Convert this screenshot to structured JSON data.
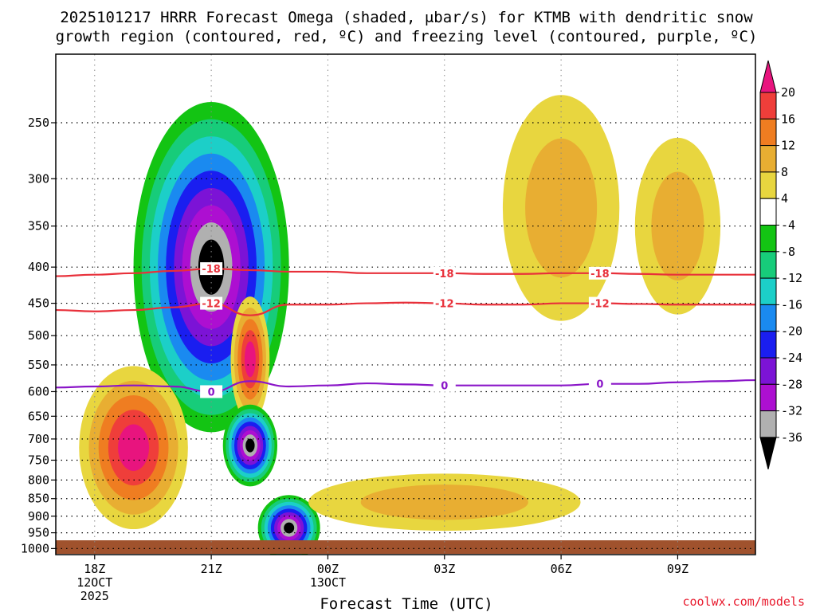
{
  "chart_data": {
    "type": "heatmap",
    "title_line1": "2025101217 HRRR Forecast Omega (shaded, μbar/s) for KTMB with dendritic snow",
    "title_line2": "growth region (contoured, red, ºC) and freezing level (contoured, purple, ºC)",
    "xlabel": "Forecast Time (UTC)",
    "credit": "coolwx.com/models",
    "x_ticks": [
      {
        "hour": 1,
        "label": "18Z",
        "sub1": "12OCT",
        "sub2": "2025"
      },
      {
        "hour": 4,
        "label": "21Z",
        "sub1": "",
        "sub2": ""
      },
      {
        "hour": 7,
        "label": "00Z",
        "sub1": "13OCT",
        "sub2": ""
      },
      {
        "hour": 10,
        "label": "03Z",
        "sub1": "",
        "sub2": ""
      },
      {
        "hour": 13,
        "label": "06Z",
        "sub1": "",
        "sub2": ""
      },
      {
        "hour": 16,
        "label": "09Z",
        "sub1": "",
        "sub2": ""
      }
    ],
    "x_range_hours": [
      0,
      18
    ],
    "y_ticks_hpa": [
      250,
      300,
      350,
      400,
      450,
      500,
      550,
      600,
      650,
      700,
      750,
      800,
      850,
      900,
      950,
      1000
    ],
    "y_range_hpa": [
      200,
      1020
    ],
    "colorbar": {
      "ticks": [
        20,
        16,
        12,
        8,
        4,
        -4,
        -8,
        -12,
        -16,
        -20,
        -24,
        -28,
        -32,
        -36
      ],
      "colors": [
        "#e8147e",
        "#ef3e3a",
        "#ef7d21",
        "#e8ae32",
        "#e8d63f",
        "#ffffff",
        "#13c413",
        "#17cc7a",
        "#1ccfc8",
        "#1a8af0",
        "#1a1ef0",
        "#7c13d6",
        "#ad0fd1",
        "#b0b0b0",
        "#000000"
      ]
    },
    "omega_features": [
      {
        "name": "main-ascent-core",
        "cx": 4.0,
        "cy": 400,
        "rx": 2.0,
        "ry": 210,
        "levels": [
          -4,
          -8,
          -12,
          -16,
          -20,
          -24,
          -28,
          -32,
          -36
        ]
      },
      {
        "name": "low-level-subsidence",
        "cx": 2.0,
        "cy": 720,
        "rx": 1.4,
        "ry": 190,
        "levels": [
          4,
          8,
          12,
          16,
          20
        ]
      },
      {
        "name": "mid-level-subsidence",
        "cx": 5.0,
        "cy": 540,
        "rx": 0.5,
        "ry": 110,
        "levels": [
          4,
          8,
          12,
          16,
          20
        ]
      },
      {
        "name": "low-ascent-cell-1",
        "cx": 5.0,
        "cy": 715,
        "rx": 0.7,
        "ry": 95,
        "levels": [
          -4,
          -8,
          -12,
          -16,
          -20,
          -24,
          -28,
          -32,
          -36
        ]
      },
      {
        "name": "low-ascent-cell-2",
        "cx": 6.0,
        "cy": 935,
        "rx": 0.8,
        "ry": 100,
        "levels": [
          -4,
          -8,
          -12,
          -16,
          -20,
          -24,
          -28,
          -32,
          -36
        ]
      },
      {
        "name": "upper-subsidence-06z",
        "cx": 13.0,
        "cy": 330,
        "rx": 1.5,
        "ry": 120,
        "levels": [
          4,
          8
        ]
      },
      {
        "name": "upper-subsidence-09z",
        "cx": 16.0,
        "cy": 350,
        "rx": 1.1,
        "ry": 100,
        "levels": [
          4,
          8
        ]
      },
      {
        "name": "low-subsidence-band",
        "cx": 10.0,
        "cy": 860,
        "rx": 3.5,
        "ry": 80,
        "levels": [
          4,
          8
        ]
      }
    ],
    "contours": [
      {
        "name": "dendritic-top",
        "label": "-18",
        "color": "#e8303a",
        "hpa": [
          412,
          410,
          408,
          405,
          402,
          404,
          406,
          406,
          408,
          408,
          408,
          409,
          409,
          408,
          408,
          409,
          410,
          410,
          410
        ]
      },
      {
        "name": "dendritic-bottom",
        "label": "-12",
        "color": "#e8303a",
        "hpa": [
          460,
          462,
          460,
          456,
          450,
          468,
          452,
          452,
          450,
          449,
          450,
          452,
          452,
          450,
          450,
          451,
          452,
          452,
          452
        ]
      },
      {
        "name": "freezing-level",
        "label": "0",
        "color": "#8a16c8",
        "hpa": [
          592,
          590,
          588,
          590,
          600,
          580,
          590,
          588,
          584,
          586,
          588,
          588,
          588,
          588,
          585,
          585,
          582,
          580,
          578
        ]
      }
    ]
  }
}
